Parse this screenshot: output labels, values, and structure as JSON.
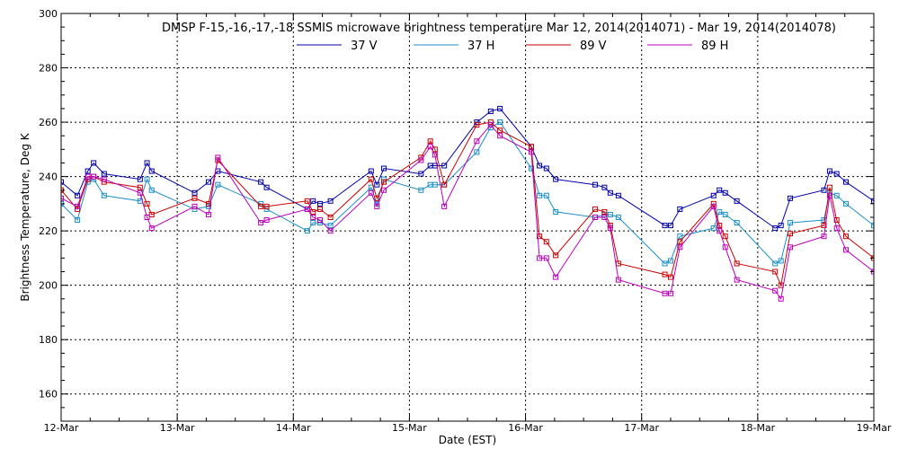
{
  "chart_data": {
    "type": "line",
    "title": "DMSP F-15,-16,-17,-18 SSMIS microwave brightness temperature Mar 12, 2014(2014071) - Mar 19, 2014(2014078)",
    "xlabel": "Date (EST)",
    "ylabel": "Brightness Temperature, Deg K",
    "xlim": [
      0,
      7
    ],
    "ylim": [
      150,
      300
    ],
    "x_ticks": [
      0,
      1,
      2,
      3,
      4,
      5,
      6,
      7
    ],
    "x_tick_labels": [
      "12-Mar",
      "13-Mar",
      "14-Mar",
      "15-Mar",
      "16-Mar",
      "17-Mar",
      "18-Mar",
      "19-Mar"
    ],
    "y_ticks": [
      160,
      180,
      200,
      220,
      240,
      260,
      280,
      300
    ],
    "y_tick_labels": [
      "160",
      "180",
      "200",
      "220",
      "240",
      "260",
      "280",
      "300"
    ],
    "grid": true,
    "legend_position": "top-center",
    "series": [
      {
        "name": "37 V",
        "color": "#0000aa",
        "points": [
          [
            0,
            238
          ],
          [
            0.14,
            233
          ],
          [
            0.23,
            242
          ],
          [
            0.28,
            245
          ],
          [
            0.37,
            241
          ],
          [
            0.68,
            239
          ],
          [
            0.74,
            245
          ],
          [
            0.78,
            242
          ],
          [
            1.15,
            234
          ],
          [
            1.27,
            238
          ],
          [
            1.35,
            242
          ],
          [
            1.72,
            238
          ],
          [
            1.77,
            236
          ],
          [
            2.12,
            228
          ],
          [
            2.17,
            231
          ],
          [
            2.23,
            230
          ],
          [
            2.32,
            231
          ],
          [
            2.67,
            242
          ],
          [
            2.72,
            237
          ],
          [
            2.78,
            243
          ],
          [
            3.1,
            241
          ],
          [
            3.18,
            244
          ],
          [
            3.22,
            244
          ],
          [
            3.3,
            244
          ],
          [
            3.58,
            260
          ],
          [
            3.7,
            264
          ],
          [
            3.78,
            265
          ],
          [
            4.05,
            251
          ],
          [
            4.12,
            244
          ],
          [
            4.18,
            243
          ],
          [
            4.26,
            239
          ],
          [
            4.6,
            237
          ],
          [
            4.68,
            236
          ],
          [
            4.73,
            234
          ],
          [
            4.8,
            233
          ],
          [
            5.2,
            222
          ],
          [
            5.25,
            222
          ],
          [
            5.33,
            228
          ],
          [
            5.62,
            233
          ],
          [
            5.67,
            235
          ],
          [
            5.72,
            234
          ],
          [
            5.82,
            231
          ],
          [
            6.15,
            221
          ],
          [
            6.2,
            222
          ],
          [
            6.28,
            232
          ],
          [
            6.57,
            235
          ],
          [
            6.62,
            242
          ],
          [
            6.68,
            241
          ],
          [
            6.76,
            238
          ],
          [
            7.0,
            231
          ]
        ]
      },
      {
        "name": "37 H",
        "color": "#1a8fc9",
        "points": [
          [
            0,
            230
          ],
          [
            0.14,
            224
          ],
          [
            0.23,
            238
          ],
          [
            0.28,
            239
          ],
          [
            0.37,
            233
          ],
          [
            0.68,
            231
          ],
          [
            0.74,
            239
          ],
          [
            0.78,
            235
          ],
          [
            1.15,
            228
          ],
          [
            1.27,
            229
          ],
          [
            1.35,
            237
          ],
          [
            1.72,
            230
          ],
          [
            1.77,
            228
          ],
          [
            2.12,
            220
          ],
          [
            2.17,
            223
          ],
          [
            2.23,
            223
          ],
          [
            2.32,
            222
          ],
          [
            2.67,
            236
          ],
          [
            2.72,
            230
          ],
          [
            2.78,
            239
          ],
          [
            3.1,
            235
          ],
          [
            3.18,
            237
          ],
          [
            3.22,
            237
          ],
          [
            3.3,
            237
          ],
          [
            3.58,
            249
          ],
          [
            3.7,
            258
          ],
          [
            3.78,
            260
          ],
          [
            4.05,
            243
          ],
          [
            4.12,
            233
          ],
          [
            4.18,
            233
          ],
          [
            4.26,
            227
          ],
          [
            4.6,
            225
          ],
          [
            4.68,
            226
          ],
          [
            4.73,
            226
          ],
          [
            4.8,
            225
          ],
          [
            5.2,
            208
          ],
          [
            5.25,
            209
          ],
          [
            5.33,
            218
          ],
          [
            5.62,
            221
          ],
          [
            5.67,
            227
          ],
          [
            5.72,
            226
          ],
          [
            5.82,
            223
          ],
          [
            6.15,
            208
          ],
          [
            6.2,
            209
          ],
          [
            6.28,
            223
          ],
          [
            6.57,
            224
          ],
          [
            6.62,
            234
          ],
          [
            6.68,
            233
          ],
          [
            6.76,
            230
          ],
          [
            7.0,
            222
          ]
        ]
      },
      {
        "name": "89 V",
        "color": "#cc0000",
        "points": [
          [
            0,
            235
          ],
          [
            0.14,
            228
          ],
          [
            0.23,
            239
          ],
          [
            0.28,
            240
          ],
          [
            0.37,
            238
          ],
          [
            0.68,
            236
          ],
          [
            0.74,
            230
          ],
          [
            0.78,
            226
          ],
          [
            1.15,
            232
          ],
          [
            1.27,
            230
          ],
          [
            1.35,
            246
          ],
          [
            1.72,
            229
          ],
          [
            1.77,
            229
          ],
          [
            2.12,
            231
          ],
          [
            2.17,
            227
          ],
          [
            2.23,
            228
          ],
          [
            2.32,
            225
          ],
          [
            2.67,
            239
          ],
          [
            2.72,
            232
          ],
          [
            2.78,
            238
          ],
          [
            3.1,
            247
          ],
          [
            3.18,
            253
          ],
          [
            3.22,
            250
          ],
          [
            3.3,
            237
          ],
          [
            3.58,
            259
          ],
          [
            3.7,
            260
          ],
          [
            3.78,
            257
          ],
          [
            4.05,
            251
          ],
          [
            4.12,
            218
          ],
          [
            4.18,
            216
          ],
          [
            4.26,
            211
          ],
          [
            4.6,
            228
          ],
          [
            4.68,
            227
          ],
          [
            4.73,
            222
          ],
          [
            4.8,
            208
          ],
          [
            5.2,
            204
          ],
          [
            5.25,
            203
          ],
          [
            5.33,
            216
          ],
          [
            5.62,
            230
          ],
          [
            5.67,
            222
          ],
          [
            5.72,
            218
          ],
          [
            5.82,
            208
          ],
          [
            6.15,
            205
          ],
          [
            6.2,
            200
          ],
          [
            6.28,
            219
          ],
          [
            6.57,
            222
          ],
          [
            6.62,
            236
          ],
          [
            6.68,
            224
          ],
          [
            6.76,
            218
          ],
          [
            7.0,
            210
          ]
        ]
      },
      {
        "name": "89 H",
        "color": "#bb00bb",
        "points": [
          [
            0,
            232
          ],
          [
            0.14,
            229
          ],
          [
            0.23,
            240
          ],
          [
            0.28,
            240
          ],
          [
            0.37,
            239
          ],
          [
            0.68,
            234
          ],
          [
            0.74,
            225
          ],
          [
            0.78,
            221
          ],
          [
            1.15,
            229
          ],
          [
            1.27,
            226
          ],
          [
            1.35,
            247
          ],
          [
            1.72,
            223
          ],
          [
            1.77,
            224
          ],
          [
            2.12,
            228
          ],
          [
            2.17,
            225
          ],
          [
            2.23,
            224
          ],
          [
            2.32,
            220
          ],
          [
            2.67,
            234
          ],
          [
            2.72,
            229
          ],
          [
            2.78,
            235
          ],
          [
            3.1,
            246
          ],
          [
            3.18,
            251
          ],
          [
            3.22,
            248
          ],
          [
            3.3,
            229
          ],
          [
            3.58,
            253
          ],
          [
            3.7,
            259
          ],
          [
            3.78,
            255
          ],
          [
            4.05,
            249
          ],
          [
            4.12,
            210
          ],
          [
            4.18,
            210
          ],
          [
            4.26,
            203
          ],
          [
            4.6,
            225
          ],
          [
            4.68,
            225
          ],
          [
            4.73,
            221
          ],
          [
            4.8,
            202
          ],
          [
            5.2,
            197
          ],
          [
            5.25,
            197
          ],
          [
            5.33,
            214
          ],
          [
            5.62,
            229
          ],
          [
            5.67,
            220
          ],
          [
            5.72,
            214
          ],
          [
            5.82,
            202
          ],
          [
            6.15,
            198
          ],
          [
            6.2,
            195
          ],
          [
            6.28,
            214
          ],
          [
            6.57,
            218
          ],
          [
            6.62,
            233
          ],
          [
            6.68,
            221
          ],
          [
            6.76,
            213
          ],
          [
            7.0,
            205
          ]
        ]
      }
    ]
  }
}
